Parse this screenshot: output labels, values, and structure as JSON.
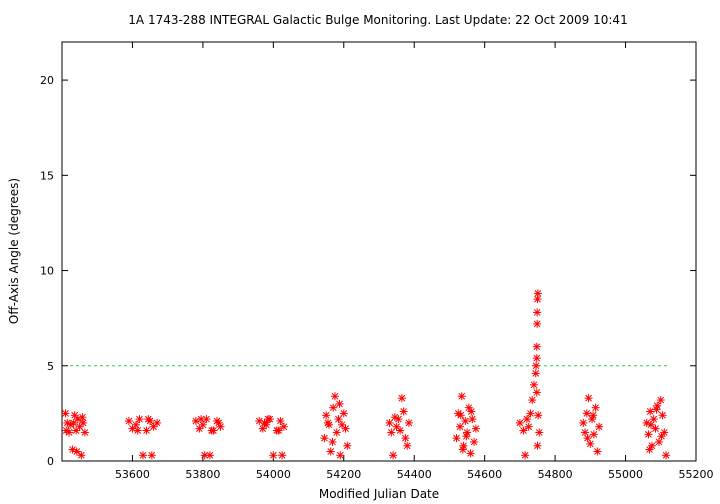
{
  "chart_data": {
    "type": "scatter",
    "title": "1A 1743-288   INTEGRAL Galactic Bulge Monitoring.  Last Update: 22 Oct 2009 10:41",
    "xlabel": "Modified Julian Date",
    "ylabel": "Off-Axis Angle (degrees)",
    "xlim": [
      53400,
      55200
    ],
    "ylim": [
      0,
      22
    ],
    "xticks": [
      53600,
      53800,
      54000,
      54200,
      54400,
      54600,
      54800,
      55000,
      55200
    ],
    "yticks": [
      0,
      5,
      10,
      15,
      20
    ],
    "grid": false,
    "legend": "none",
    "marker": "asterisk",
    "marker_color": "#ff0000",
    "reference_line": {
      "y": 5,
      "style": "dashed",
      "color": "#33cc33"
    },
    "series": [
      {
        "values": [
          {
            "x": 53410,
            "y": 2.5
          },
          {
            "x": 53415,
            "y": 2.0
          },
          {
            "x": 53420,
            "y": 1.5
          },
          {
            "x": 53425,
            "y": 1.9
          },
          {
            "x": 53430,
            "y": 0.6
          },
          {
            "x": 53436,
            "y": 2.4
          },
          {
            "x": 53440,
            "y": 1.6
          },
          {
            "x": 53445,
            "y": 2.2
          },
          {
            "x": 53450,
            "y": 1.8
          },
          {
            "x": 53455,
            "y": 0.3
          },
          {
            "x": 53460,
            "y": 2.0
          },
          {
            "x": 53465,
            "y": 1.5
          },
          {
            "x": 53412,
            "y": 1.6
          },
          {
            "x": 53433,
            "y": 2.0
          },
          {
            "x": 53442,
            "y": 0.5
          },
          {
            "x": 53458,
            "y": 2.3
          },
          {
            "x": 53590,
            "y": 2.1
          },
          {
            "x": 53600,
            "y": 1.7
          },
          {
            "x": 53610,
            "y": 1.9
          },
          {
            "x": 53620,
            "y": 2.2
          },
          {
            "x": 53630,
            "y": 0.3
          },
          {
            "x": 53640,
            "y": 1.6
          },
          {
            "x": 53650,
            "y": 2.1
          },
          {
            "x": 53660,
            "y": 1.8
          },
          {
            "x": 53670,
            "y": 2.0
          },
          {
            "x": 53615,
            "y": 1.6
          },
          {
            "x": 53645,
            "y": 2.2
          },
          {
            "x": 53655,
            "y": 0.3
          },
          {
            "x": 53780,
            "y": 2.1
          },
          {
            "x": 53790,
            "y": 1.7
          },
          {
            "x": 53800,
            "y": 1.9
          },
          {
            "x": 53810,
            "y": 2.2
          },
          {
            "x": 53820,
            "y": 0.3
          },
          {
            "x": 53830,
            "y": 1.6
          },
          {
            "x": 53840,
            "y": 2.1
          },
          {
            "x": 53850,
            "y": 1.8
          },
          {
            "x": 53795,
            "y": 2.2
          },
          {
            "x": 53825,
            "y": 1.6
          },
          {
            "x": 53805,
            "y": 0.3
          },
          {
            "x": 53845,
            "y": 2.0
          },
          {
            "x": 53960,
            "y": 2.1
          },
          {
            "x": 53970,
            "y": 1.7
          },
          {
            "x": 53980,
            "y": 1.9
          },
          {
            "x": 53990,
            "y": 2.2
          },
          {
            "x": 54000,
            "y": 0.3
          },
          {
            "x": 54010,
            "y": 1.6
          },
          {
            "x": 54020,
            "y": 2.1
          },
          {
            "x": 54030,
            "y": 1.8
          },
          {
            "x": 53985,
            "y": 2.2
          },
          {
            "x": 54015,
            "y": 1.6
          },
          {
            "x": 54025,
            "y": 0.3
          },
          {
            "x": 53975,
            "y": 2.0
          },
          {
            "x": 54145,
            "y": 1.2
          },
          {
            "x": 54150,
            "y": 2.4
          },
          {
            "x": 54158,
            "y": 1.9
          },
          {
            "x": 54163,
            "y": 0.5
          },
          {
            "x": 54170,
            "y": 2.8
          },
          {
            "x": 54175,
            "y": 3.4
          },
          {
            "x": 54180,
            "y": 1.5
          },
          {
            "x": 54185,
            "y": 2.2
          },
          {
            "x": 54190,
            "y": 0.3
          },
          {
            "x": 54195,
            "y": 1.9
          },
          {
            "x": 54200,
            "y": 2.5
          },
          {
            "x": 54205,
            "y": 1.7
          },
          {
            "x": 54210,
            "y": 0.8
          },
          {
            "x": 54155,
            "y": 2.0
          },
          {
            "x": 54168,
            "y": 1.0
          },
          {
            "x": 54188,
            "y": 3.0
          },
          {
            "x": 54330,
            "y": 2.0
          },
          {
            "x": 54335,
            "y": 1.5
          },
          {
            "x": 54340,
            "y": 0.3
          },
          {
            "x": 54345,
            "y": 2.3
          },
          {
            "x": 54350,
            "y": 1.8
          },
          {
            "x": 54355,
            "y": 2.2
          },
          {
            "x": 54360,
            "y": 1.6
          },
          {
            "x": 54365,
            "y": 3.3
          },
          {
            "x": 54370,
            "y": 2.6
          },
          {
            "x": 54375,
            "y": 1.2
          },
          {
            "x": 54380,
            "y": 0.8
          },
          {
            "x": 54385,
            "y": 2.0
          },
          {
            "x": 54520,
            "y": 1.2
          },
          {
            "x": 54525,
            "y": 2.5
          },
          {
            "x": 54530,
            "y": 1.8
          },
          {
            "x": 54535,
            "y": 3.4
          },
          {
            "x": 54540,
            "y": 0.8
          },
          {
            "x": 54545,
            "y": 2.1
          },
          {
            "x": 54550,
            "y": 1.5
          },
          {
            "x": 54555,
            "y": 2.8
          },
          {
            "x": 54560,
            "y": 0.4
          },
          {
            "x": 54565,
            "y": 2.2
          },
          {
            "x": 54570,
            "y": 1.0
          },
          {
            "x": 54575,
            "y": 1.7
          },
          {
            "x": 54532,
            "y": 2.4
          },
          {
            "x": 54548,
            "y": 1.3
          },
          {
            "x": 54562,
            "y": 2.6
          },
          {
            "x": 54538,
            "y": 0.6
          },
          {
            "x": 54700,
            "y": 2.0
          },
          {
            "x": 54710,
            "y": 1.6
          },
          {
            "x": 54715,
            "y": 0.3
          },
          {
            "x": 54720,
            "y": 2.2
          },
          {
            "x": 54725,
            "y": 1.8
          },
          {
            "x": 54730,
            "y": 2.5
          },
          {
            "x": 54735,
            "y": 3.2
          },
          {
            "x": 54740,
            "y": 4.0
          },
          {
            "x": 54745,
            "y": 4.6
          },
          {
            "x": 54748,
            "y": 5.4
          },
          {
            "x": 54748,
            "y": 6.0
          },
          {
            "x": 54749,
            "y": 7.2
          },
          {
            "x": 54749,
            "y": 7.8
          },
          {
            "x": 54750,
            "y": 8.5
          },
          {
            "x": 54751,
            "y": 8.8
          },
          {
            "x": 54748,
            "y": 3.6
          },
          {
            "x": 54752,
            "y": 2.4
          },
          {
            "x": 54755,
            "y": 1.5
          },
          {
            "x": 54750,
            "y": 0.8
          },
          {
            "x": 54746,
            "y": 5.0
          },
          {
            "x": 54880,
            "y": 2.0
          },
          {
            "x": 54885,
            "y": 1.5
          },
          {
            "x": 54890,
            "y": 2.5
          },
          {
            "x": 54895,
            "y": 3.3
          },
          {
            "x": 54900,
            "y": 0.9
          },
          {
            "x": 54905,
            "y": 2.2
          },
          {
            "x": 54910,
            "y": 1.4
          },
          {
            "x": 54915,
            "y": 2.8
          },
          {
            "x": 54920,
            "y": 0.5
          },
          {
            "x": 54925,
            "y": 1.8
          },
          {
            "x": 54892,
            "y": 1.2
          },
          {
            "x": 54908,
            "y": 2.4
          },
          {
            "x": 55060,
            "y": 2.0
          },
          {
            "x": 55065,
            "y": 1.4
          },
          {
            "x": 55070,
            "y": 2.6
          },
          {
            "x": 55075,
            "y": 0.8
          },
          {
            "x": 55080,
            "y": 2.2
          },
          {
            "x": 55085,
            "y": 1.7
          },
          {
            "x": 55090,
            "y": 2.9
          },
          {
            "x": 55095,
            "y": 1.0
          },
          {
            "x": 55100,
            "y": 3.2
          },
          {
            "x": 55105,
            "y": 2.4
          },
          {
            "x": 55110,
            "y": 1.5
          },
          {
            "x": 55115,
            "y": 0.3
          },
          {
            "x": 55072,
            "y": 1.9
          },
          {
            "x": 55088,
            "y": 2.7
          },
          {
            "x": 55102,
            "y": 1.3
          },
          {
            "x": 55068,
            "y": 0.6
          }
        ]
      }
    ]
  }
}
